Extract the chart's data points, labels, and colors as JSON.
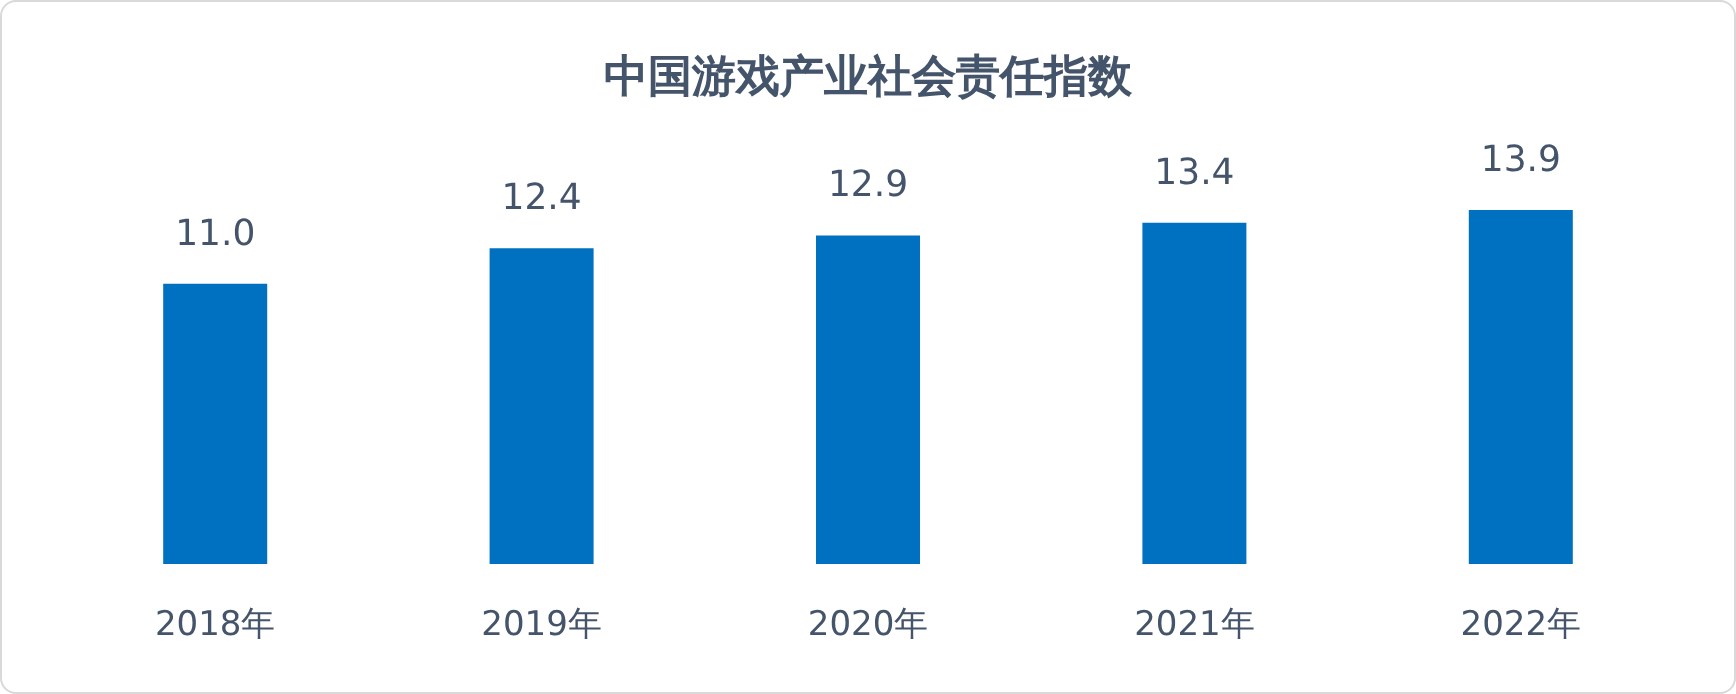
{
  "chart_data": {
    "type": "bar",
    "title": "中国游戏产业社会责任指数",
    "categories": [
      "2018年",
      "2019年",
      "2020年",
      "2021年",
      "2022年"
    ],
    "values": [
      11.0,
      12.4,
      12.9,
      13.4,
      13.9
    ],
    "color": "#0070c0",
    "value_labels": [
      "11.0",
      "12.4",
      "12.9",
      "13.4",
      "13.9"
    ],
    "tick_labels": "x",
    "grid": false
  }
}
